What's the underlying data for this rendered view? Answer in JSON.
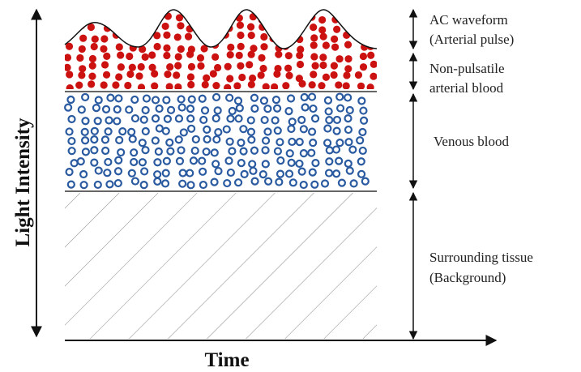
{
  "axes": {
    "y_label": "Light Intensity",
    "x_label": "Time"
  },
  "layers": [
    {
      "lines": [
        "AC waveform",
        "(Arterial pulse)"
      ]
    },
    {
      "lines": [
        "Non-pulsatile",
        "arterial blood"
      ]
    },
    {
      "lines": [
        "Venous blood"
      ]
    },
    {
      "lines": [
        "Surrounding tissue",
        "(Background)"
      ]
    }
  ]
}
